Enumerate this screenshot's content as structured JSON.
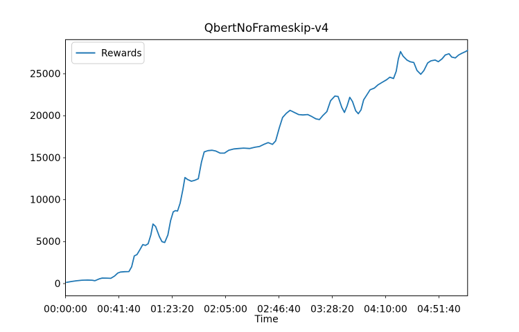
{
  "figure": {
    "background": "#ffffff",
    "frame_color": "#000000"
  },
  "chart_data": {
    "type": "line",
    "title": "QbertNoFrameskip-v4",
    "xlabel": "Time",
    "ylabel": "",
    "grid": false,
    "legend_position": "upper left",
    "line_color": "#1f77b4",
    "xlim": [
      0,
      18845
    ],
    "ylim": [
      -1460,
      29080
    ],
    "x_ticks": [
      {
        "v": 0,
        "label": "00:00:00"
      },
      {
        "v": 2500,
        "label": "00:41:40"
      },
      {
        "v": 5000,
        "label": "01:23:20"
      },
      {
        "v": 7500,
        "label": "02:05:00"
      },
      {
        "v": 10000,
        "label": "02:46:40"
      },
      {
        "v": 12500,
        "label": "03:28:20"
      },
      {
        "v": 15000,
        "label": "04:10:00"
      },
      {
        "v": 17500,
        "label": "04:51:40"
      }
    ],
    "y_ticks": [
      {
        "v": 0,
        "label": "0"
      },
      {
        "v": 5000,
        "label": "5000"
      },
      {
        "v": 10000,
        "label": "10000"
      },
      {
        "v": 15000,
        "label": "15000"
      },
      {
        "v": 20000,
        "label": "20000"
      },
      {
        "v": 25000,
        "label": "25000"
      }
    ],
    "series": [
      {
        "name": "Rewards",
        "color": "#1f77b4",
        "x": [
          50,
          275,
          500,
          775,
          1025,
          1250,
          1375,
          1575,
          1725,
          1925,
          2125,
          2300,
          2450,
          2575,
          2775,
          2975,
          3100,
          3225,
          3350,
          3500,
          3625,
          3750,
          3875,
          4000,
          4100,
          4225,
          4400,
          4525,
          4650,
          4800,
          4925,
          5050,
          5150,
          5250,
          5375,
          5500,
          5600,
          5725,
          5900,
          6050,
          6225,
          6375,
          6500,
          6675,
          6875,
          7050,
          7250,
          7450,
          7650,
          7900,
          8125,
          8350,
          8625,
          8875,
          9100,
          9300,
          9500,
          9700,
          9850,
          10025,
          10175,
          10350,
          10525,
          10725,
          10925,
          11125,
          11350,
          11550,
          11725,
          11900,
          12050,
          12250,
          12425,
          12625,
          12775,
          12950,
          13075,
          13200,
          13325,
          13450,
          13600,
          13725,
          13850,
          13975,
          14100,
          14275,
          14475,
          14650,
          14850,
          15050,
          15200,
          15375,
          15500,
          15600,
          15700,
          15825,
          16000,
          16150,
          16325,
          16475,
          16650,
          16800,
          16975,
          17125,
          17325,
          17475,
          17650,
          17800,
          17975,
          18100,
          18275,
          18425,
          18575,
          18750,
          18845
        ],
        "y": [
          150,
          250,
          330,
          400,
          420,
          400,
          340,
          550,
          660,
          650,
          630,
          900,
          1250,
          1380,
          1420,
          1430,
          2000,
          3300,
          3450,
          4100,
          4650,
          4550,
          4750,
          5800,
          7100,
          6800,
          5600,
          5000,
          4900,
          5800,
          7500,
          8550,
          8700,
          8650,
          9600,
          11200,
          12650,
          12400,
          12200,
          12300,
          12500,
          14500,
          15700,
          15850,
          15900,
          15800,
          15550,
          15550,
          15900,
          16050,
          16100,
          16150,
          16100,
          16250,
          16350,
          16600,
          16800,
          16600,
          17000,
          18600,
          19800,
          20300,
          20650,
          20400,
          20150,
          20100,
          20150,
          19900,
          19650,
          19550,
          20000,
          20500,
          21800,
          22350,
          22300,
          21000,
          20400,
          21200,
          22200,
          21700,
          20600,
          20250,
          20700,
          21900,
          22400,
          23100,
          23300,
          23700,
          24000,
          24300,
          24600,
          24450,
          25300,
          26800,
          27650,
          27100,
          26650,
          26450,
          26350,
          25400,
          24950,
          25400,
          26300,
          26550,
          26650,
          26450,
          26800,
          27250,
          27400,
          27000,
          26900,
          27250,
          27450,
          27650,
          27800
        ]
      }
    ]
  }
}
